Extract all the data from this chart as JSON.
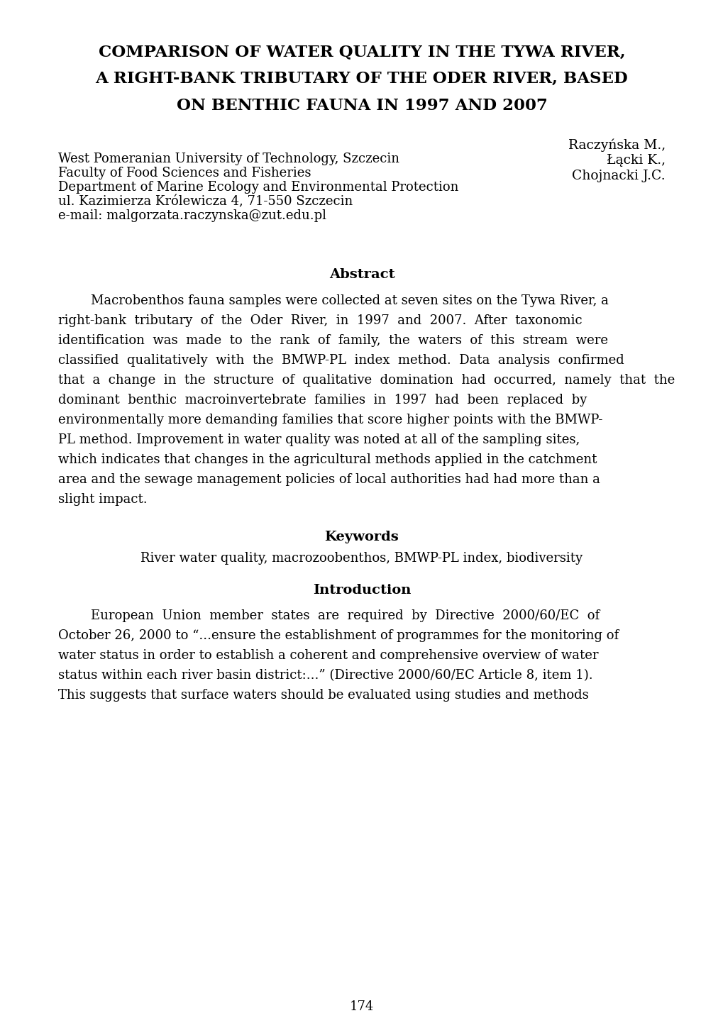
{
  "title_line1": "COMPARISON OF WATER QUALITY IN THE TYWA RIVER,",
  "title_line2": "A RIGHT-BANK TRIBUTARY OF THE ODER RIVER, BASED",
  "title_line3": "ON BENTHIC FAUNA IN 1997 AND 2007",
  "authors": [
    "Raczyńska M.,",
    "Łącki K.,",
    "Chojnacki J.C."
  ],
  "affiliation_lines": [
    "West Pomeranian University of Technology, Szczecin",
    "Faculty of Food Sciences and Fisheries",
    "Department of Marine Ecology and Environmental Protection",
    "ul. Kazimierza Królewicza 4, 71-550 Szczecin",
    "e-mail: malgorzata.raczynska@zut.edu.pl"
  ],
  "abstract_title": "Abstract",
  "keywords_title": "Keywords",
  "keywords_text": "River water quality, macrozoobenthos, BMWP-PL index, biodiversity",
  "introduction_title": "Introduction",
  "page_number": "174",
  "background_color": "#ffffff",
  "text_color": "#000000",
  "title_fontsize": 16.5,
  "author_fontsize": 13.5,
  "body_fontsize": 13.0,
  "section_title_fontsize": 14.0,
  "affil_fontsize": 13.0,
  "page_num_fontsize": 13,
  "abstract_lines": [
    "        Macrobenthos fauna samples were collected at seven sites on the Tywa River, a",
    "right-bank  tributary  of  the  Oder  River,  in  1997  and  2007.  After  taxonomic",
    "identification  was  made  to  the  rank  of  family,  the  waters  of  this  stream  were",
    "classified  qualitatively  with  the  BMWP-PL  index  method.  Data  analysis  confirmed",
    "that  a  change  in  the  structure  of  qualitative  domination  had  occurred,  namely  that  the",
    "dominant  benthic  macroinvertebrate  families  in  1997  had  been  replaced  by",
    "environmentally more demanding families that score higher points with the BMWP-",
    "PL method. Improvement in water quality was noted at all of the sampling sites,",
    "which indicates that changes in the agricultural methods applied in the catchment",
    "area and the sewage management policies of local authorities had had more than a",
    "slight impact."
  ],
  "intro_lines": [
    "        European  Union  member  states  are  required  by  Directive  2000/60/EC  of",
    "October 26, 2000 to “...ensure the establishment of programmes for the monitoring of",
    "water status in order to establish a coherent and comprehensive overview of water",
    "status within each river basin district:...” (Directive 2000/60/EC Article 8, item 1).",
    "This suggests that surface waters should be evaluated using studies and methods"
  ]
}
